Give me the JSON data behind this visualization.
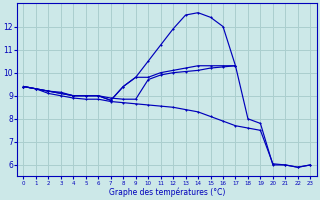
{
  "xlabel": "Graphe des températures (°C)",
  "hours": [
    0,
    1,
    2,
    3,
    4,
    5,
    6,
    7,
    8,
    9,
    10,
    11,
    12,
    13,
    14,
    15,
    16,
    17,
    18,
    19,
    20,
    21,
    22,
    23
  ],
  "line_max": [
    9.4,
    9.3,
    9.2,
    9.1,
    9.0,
    9.0,
    9.0,
    8.8,
    9.4,
    9.8,
    10.5,
    11.2,
    11.9,
    12.5,
    12.6,
    12.4,
    12.0,
    10.3,
    null,
    null,
    null,
    null,
    null,
    null
  ],
  "line_avg": [
    9.4,
    9.3,
    9.2,
    9.15,
    9.0,
    9.0,
    9.0,
    8.9,
    8.85,
    8.85,
    9.7,
    9.9,
    10.0,
    10.05,
    10.1,
    10.2,
    10.25,
    10.3,
    null,
    null,
    null,
    null,
    null,
    null
  ],
  "line_min": [
    9.4,
    9.3,
    9.1,
    9.0,
    8.9,
    8.85,
    8.85,
    8.75,
    8.7,
    8.65,
    8.6,
    8.55,
    8.5,
    8.4,
    8.3,
    8.1,
    7.9,
    7.7,
    7.6,
    7.5,
    6.05,
    6.0,
    5.9,
    6.0
  ],
  "line_cur": [
    9.4,
    9.3,
    9.2,
    9.1,
    9.0,
    9.0,
    9.0,
    8.8,
    9.4,
    9.8,
    9.8,
    10.0,
    10.1,
    10.2,
    10.3,
    10.3,
    10.3,
    10.3,
    8.0,
    7.8,
    6.0,
    6.0,
    5.9,
    6.0
  ],
  "bg_color": "#cce8e8",
  "line_color": "#0000bb",
  "grid_color": "#aacece",
  "xlim": [
    -0.5,
    23.5
  ],
  "ylim": [
    5.5,
    13.0
  ],
  "yticks": [
    6,
    7,
    8,
    9,
    10,
    11,
    12
  ],
  "xticks": [
    0,
    1,
    2,
    3,
    4,
    5,
    6,
    7,
    8,
    9,
    10,
    11,
    12,
    13,
    14,
    15,
    16,
    17,
    18,
    19,
    20,
    21,
    22,
    23
  ],
  "xlabel_fontsize": 5.5,
  "tick_fontsize_x": 4.0,
  "tick_fontsize_y": 5.5,
  "marker_size": 2.0,
  "line_width": 0.85
}
